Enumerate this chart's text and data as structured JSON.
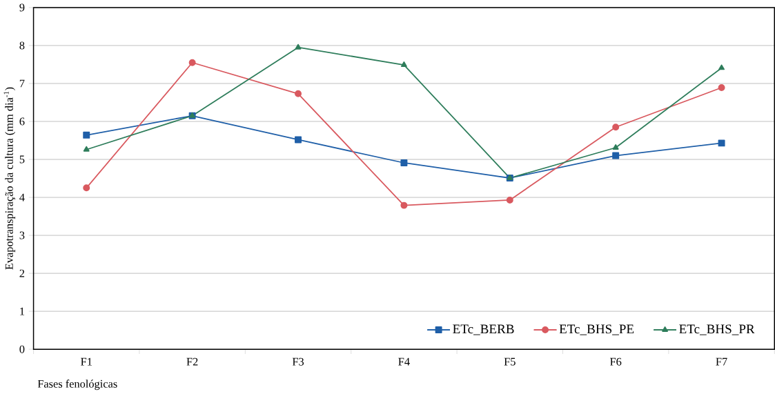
{
  "chart_data": {
    "type": "line",
    "xlabel": "Fases fenológicas",
    "ylabel": "Evapotranspiração da cultura (mm dia$^{-1}$)",
    "categories": [
      "F1",
      "F2",
      "F3",
      "F4",
      "F5",
      "F6",
      "F7"
    ],
    "series": [
      {
        "name": "ETc_BERB",
        "color": "#1f5fa8",
        "marker": "square",
        "values": [
          5.64,
          6.15,
          5.52,
          4.91,
          4.51,
          5.1,
          5.43
        ]
      },
      {
        "name": "ETc_BHS_PE",
        "color": "#d9595f",
        "marker": "circle",
        "values": [
          4.25,
          7.55,
          6.73,
          3.79,
          3.93,
          5.85,
          6.89
        ]
      },
      {
        "name": "ETc_BHS_PR",
        "color": "#2e7d5b",
        "marker": "triangle",
        "values": [
          5.26,
          6.15,
          7.95,
          7.49,
          4.51,
          5.31,
          7.41
        ]
      }
    ],
    "ylim": [
      0,
      9
    ],
    "yticks": [
      0,
      1,
      2,
      3,
      4,
      5,
      6,
      7,
      8,
      9
    ],
    "grid": "y",
    "legend": "bottom right",
    "line_style": "solid"
  }
}
